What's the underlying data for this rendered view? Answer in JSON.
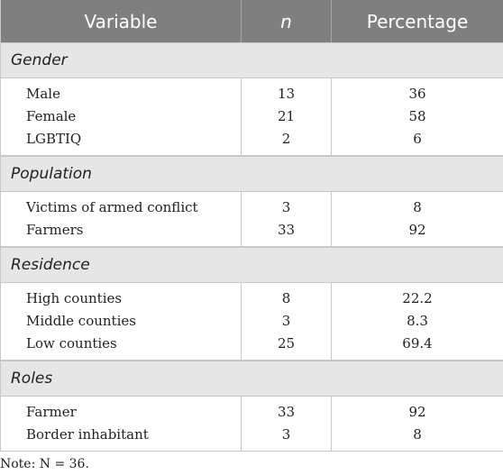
{
  "table": {
    "headers": [
      "Variable",
      "n",
      "Percentage"
    ],
    "sections": [
      {
        "title": "Gender",
        "rows": [
          {
            "variable": "Male",
            "n": "13",
            "percentage": "36"
          },
          {
            "variable": "Female",
            "n": "21",
            "percentage": "58"
          },
          {
            "variable": "LGBTIQ",
            "n": "2",
            "percentage": "6"
          }
        ]
      },
      {
        "title": "Population",
        "rows": [
          {
            "variable": "Victims of armed conflict",
            "n": "3",
            "percentage": "8"
          },
          {
            "variable": "Farmers",
            "n": "33",
            "percentage": "92"
          }
        ]
      },
      {
        "title": "Residence",
        "rows": [
          {
            "variable": "High counties",
            "n": "8",
            "percentage": "22.2"
          },
          {
            "variable": "Middle counties",
            "n": "3",
            "percentage": "8.3"
          },
          {
            "variable": "Low counties",
            "n": "25",
            "percentage": "69.4"
          }
        ]
      },
      {
        "title": "Roles",
        "rows": [
          {
            "variable": "Farmer",
            "n": "33",
            "percentage": "92"
          },
          {
            "variable": "Border inhabitant",
            "n": "3",
            "percentage": "8"
          }
        ]
      }
    ]
  },
  "note": "Note: N = 36."
}
